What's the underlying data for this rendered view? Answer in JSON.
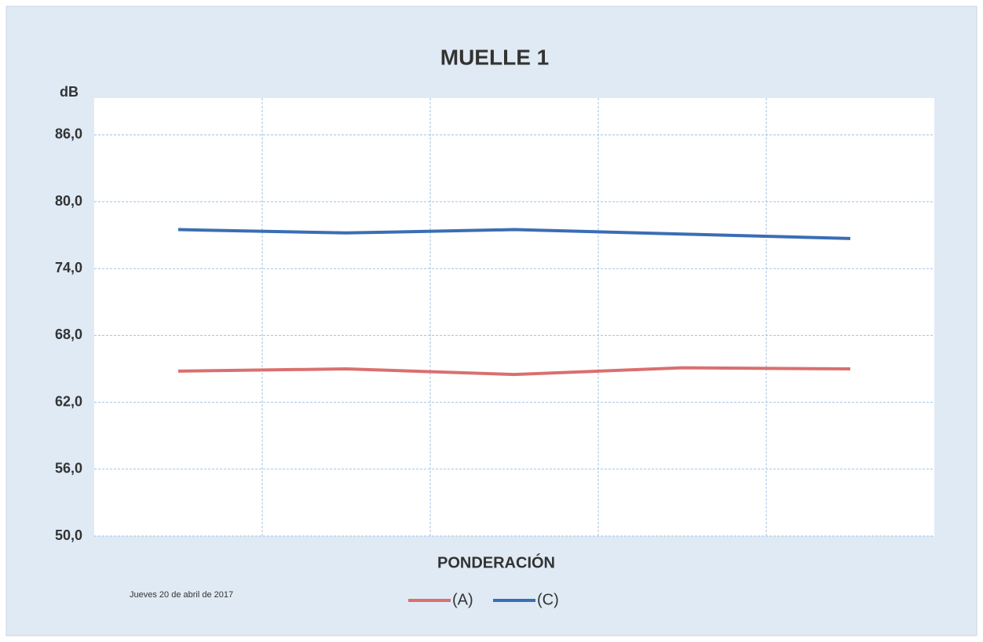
{
  "chart_data": {
    "type": "line",
    "title": "MUELLE 1",
    "y_label": "dB",
    "x_label": "PONDERACIÓN",
    "annotation": "Jueves 20 de abril de 2017",
    "categories": [
      null,
      null,
      null,
      null,
      null
    ],
    "series": [
      {
        "name": "(A)",
        "color": "#d9706f",
        "values": [
          64.8,
          65.0,
          64.5,
          65.1,
          65.0
        ]
      },
      {
        "name": "(C)",
        "color": "#3a6eb5",
        "values": [
          77.5,
          77.2,
          77.5,
          77.1,
          76.7
        ]
      }
    ],
    "ylim": [
      50,
      89.3
    ],
    "yticks": [
      {
        "value": 50,
        "label": "50,0"
      },
      {
        "value": 56,
        "label": "56,0"
      },
      {
        "value": 62,
        "label": "62,0"
      },
      {
        "value": 68,
        "label": "68,0"
      },
      {
        "value": 74,
        "label": "74,0"
      },
      {
        "value": 80,
        "label": "80,0"
      },
      {
        "value": 86,
        "label": "86,0"
      }
    ],
    "grid": true,
    "legend": "bottom"
  }
}
